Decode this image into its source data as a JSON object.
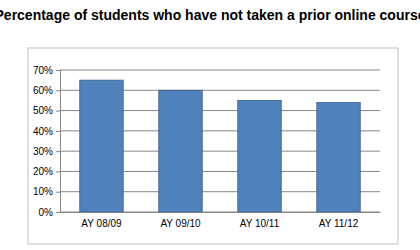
{
  "chart_data": {
    "type": "bar",
    "title": "Percentage of students who have not taken a prior online course",
    "categories": [
      "AY 08/09",
      "AY 09/10",
      "AY 10/11",
      "AY 11/12"
    ],
    "values": [
      65,
      60,
      55,
      54
    ],
    "color": "#4f81bd",
    "ylim": [
      0,
      70
    ],
    "yticks": [
      {
        "value": 0,
        "label": "0%"
      },
      {
        "value": 10,
        "label": "10%"
      },
      {
        "value": 20,
        "label": "20%"
      },
      {
        "value": 30,
        "label": "30%"
      },
      {
        "value": 40,
        "label": "40%"
      },
      {
        "value": 50,
        "label": "50%"
      },
      {
        "value": 60,
        "label": "60%"
      },
      {
        "value": 70,
        "label": "70%"
      }
    ],
    "grid": true
  }
}
